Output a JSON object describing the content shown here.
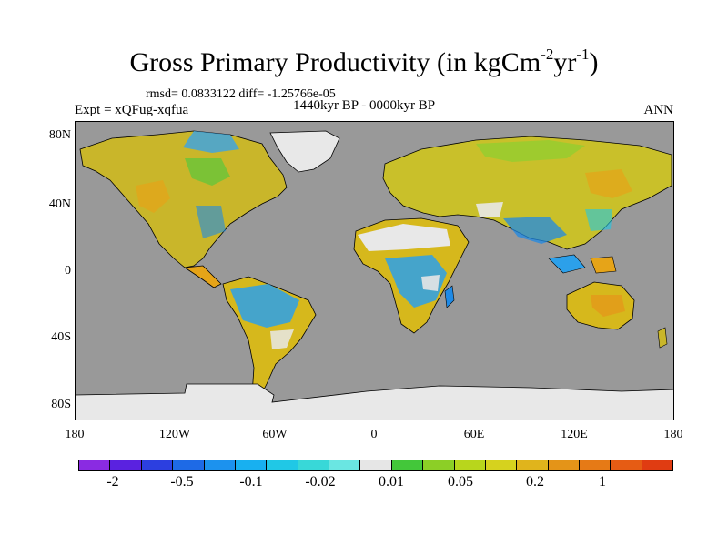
{
  "title": {
    "main": "Gross Primary Productivity (in kgCm",
    "sup1": "-2",
    "mid": "yr",
    "sup2": "-1",
    "end": ")"
  },
  "stats_line": "rmsd= 0.0833122 diff= -1.25766e-05",
  "experiment_label": "Expt = xQFug-xqfua",
  "period_label": "1440kyr BP - 0000kyr BP",
  "season_label": "ANN",
  "map": {
    "ocean_color": "#999999",
    "ice_color": "#e8e8e8",
    "lat_labels": [
      "80N",
      "40N",
      "0",
      "40S",
      "80S"
    ],
    "lon_labels": [
      "180",
      "120W",
      "60W",
      "0",
      "60E",
      "120E",
      "180"
    ]
  },
  "colorbar": {
    "colors": [
      "#8a2be2",
      "#5a22e0",
      "#2c3fe0",
      "#1e6ae6",
      "#1c92ee",
      "#18b0f0",
      "#20c8e6",
      "#38d8d8",
      "#6ae6e2",
      "#e6e6e6",
      "#43c73a",
      "#8ccf26",
      "#b8d61c",
      "#d6d21e",
      "#e0b41c",
      "#e49418",
      "#e67a16",
      "#e65c14",
      "#e03c12"
    ],
    "labels": [
      "-2",
      "-0.5",
      "-0.1",
      "-0.02",
      "0.01",
      "0.05",
      "0.2",
      "1"
    ]
  }
}
